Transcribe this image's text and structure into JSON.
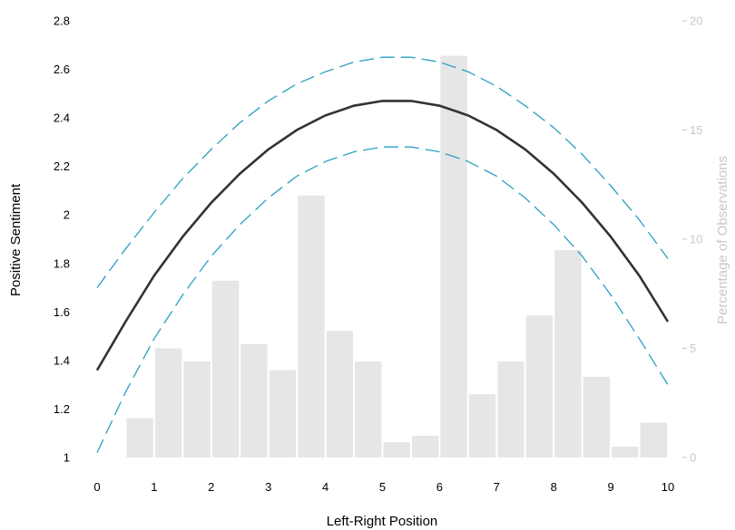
{
  "chart_data": {
    "type": "bar",
    "xlabel": "Left-Right Position",
    "ylabel": "Positive Sentiment",
    "ylabel_right": "Percentage of Observations",
    "xlim": [
      0,
      10
    ],
    "ylim": [
      1,
      2.8
    ],
    "ylim_right": [
      0,
      20
    ],
    "x_ticks": [
      "0",
      "1",
      "2",
      "3",
      "4",
      "5",
      "6",
      "7",
      "8",
      "9",
      "10"
    ],
    "y_ticks": [
      "1",
      "1.2",
      "1.4",
      "1.6",
      "1.8",
      "2",
      "2.2",
      "2.4",
      "2.6",
      "2.8"
    ],
    "y_ticks_right": [
      "0",
      "5",
      "10",
      "15",
      "20"
    ],
    "histogram": {
      "bin_starts": [
        0.5,
        1.0,
        1.5,
        2.0,
        2.5,
        3.0,
        3.5,
        4.0,
        4.5,
        5.0,
        5.5,
        6.0,
        6.5,
        7.0,
        7.5,
        8.0,
        8.5,
        9.0,
        9.5
      ],
      "bin_width": 0.5,
      "values": [
        1.8,
        5.0,
        4.4,
        8.1,
        5.2,
        4.0,
        12.0,
        5.8,
        4.4,
        0.7,
        1.0,
        18.4,
        2.9,
        4.4,
        6.5,
        9.5,
        3.7,
        0.5,
        1.6
      ],
      "color": "#e6e6e6"
    },
    "fit_line": {
      "x": [
        0,
        0.5,
        1,
        1.5,
        2,
        2.5,
        3,
        3.5,
        4,
        4.5,
        5,
        5.5,
        6,
        6.5,
        7,
        7.5,
        8,
        8.5,
        9,
        9.5,
        10
      ],
      "y": [
        1.36,
        1.56,
        1.75,
        1.91,
        2.05,
        2.17,
        2.27,
        2.35,
        2.41,
        2.45,
        2.47,
        2.47,
        2.45,
        2.41,
        2.35,
        2.27,
        2.17,
        2.05,
        1.91,
        1.75,
        1.56
      ],
      "color": "#333333"
    },
    "upper_ci": {
      "x": [
        0,
        0.5,
        1,
        1.5,
        2,
        2.5,
        3,
        3.5,
        4,
        4.5,
        5,
        5.5,
        6,
        6.5,
        7,
        7.5,
        8,
        8.5,
        9,
        9.5,
        10
      ],
      "y": [
        1.7,
        1.86,
        2.01,
        2.15,
        2.27,
        2.38,
        2.47,
        2.54,
        2.59,
        2.63,
        2.65,
        2.65,
        2.63,
        2.59,
        2.53,
        2.45,
        2.36,
        2.25,
        2.12,
        1.98,
        1.82
      ],
      "color": "#2a9fc4"
    },
    "lower_ci": {
      "x": [
        0,
        0.5,
        1,
        1.5,
        2,
        2.5,
        3,
        3.5,
        4,
        4.5,
        5,
        5.5,
        6,
        6.5,
        7,
        7.5,
        8,
        8.5,
        9,
        9.5,
        10
      ],
      "y": [
        1.02,
        1.27,
        1.49,
        1.67,
        1.83,
        1.96,
        2.07,
        2.16,
        2.22,
        2.26,
        2.28,
        2.28,
        2.26,
        2.22,
        2.16,
        2.07,
        1.96,
        1.83,
        1.67,
        1.49,
        1.3
      ],
      "color": "#2a9fc4"
    },
    "grid": false,
    "legend": "none"
  }
}
